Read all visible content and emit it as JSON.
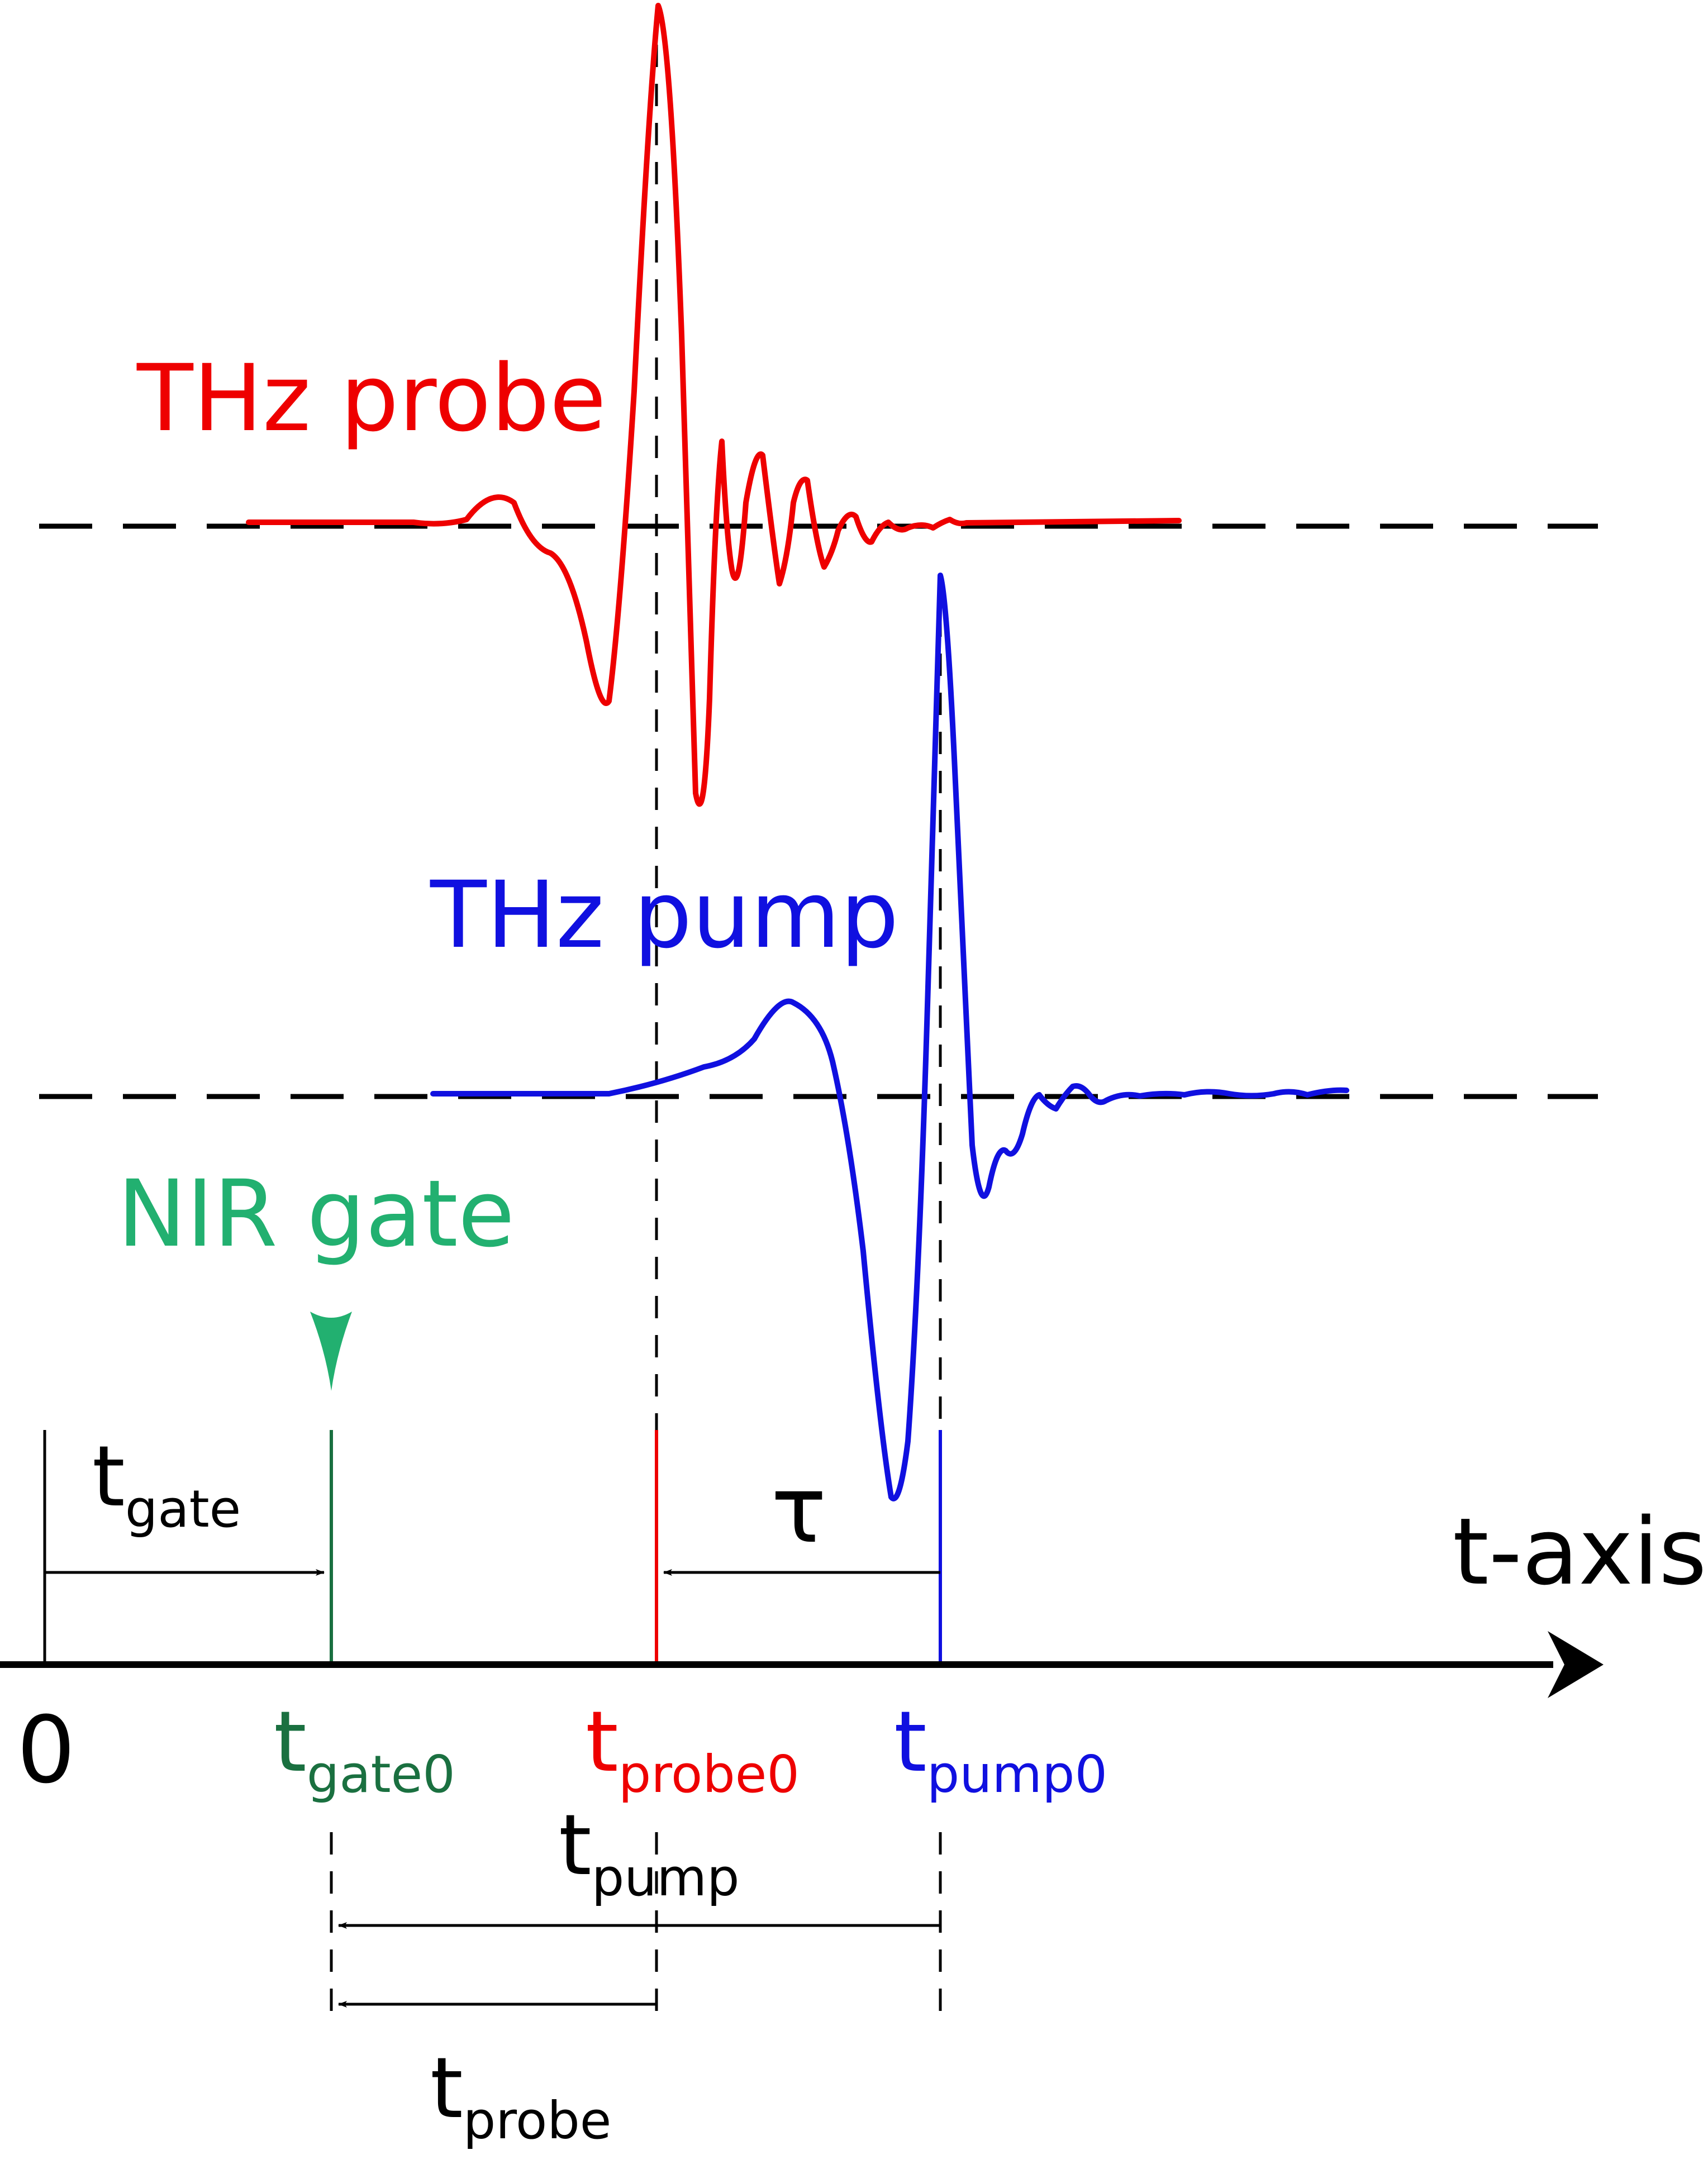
{
  "labels": {
    "probe": "THz probe",
    "pump": "THz pump",
    "gate": "NIR gate",
    "axis": "t-axis",
    "zero": "0",
    "tau": "τ"
  },
  "markers": {
    "gate0": {
      "main": "t",
      "sub": "gate0"
    },
    "probe0": {
      "main": "t",
      "sub": "probe0"
    },
    "pump0": {
      "main": "t",
      "sub": "pump0"
    }
  },
  "intervals": {
    "gate": {
      "main": "t",
      "sub": "gate"
    },
    "pump": {
      "main": "t",
      "sub": "pump"
    },
    "probe": {
      "main": "t",
      "sub": "probe"
    }
  },
  "colors": {
    "probe": "#ee0000",
    "pump": "#1010e0",
    "gate_label": "#22b070",
    "gate_marker": "#1a7040",
    "axis": "#000000"
  }
}
